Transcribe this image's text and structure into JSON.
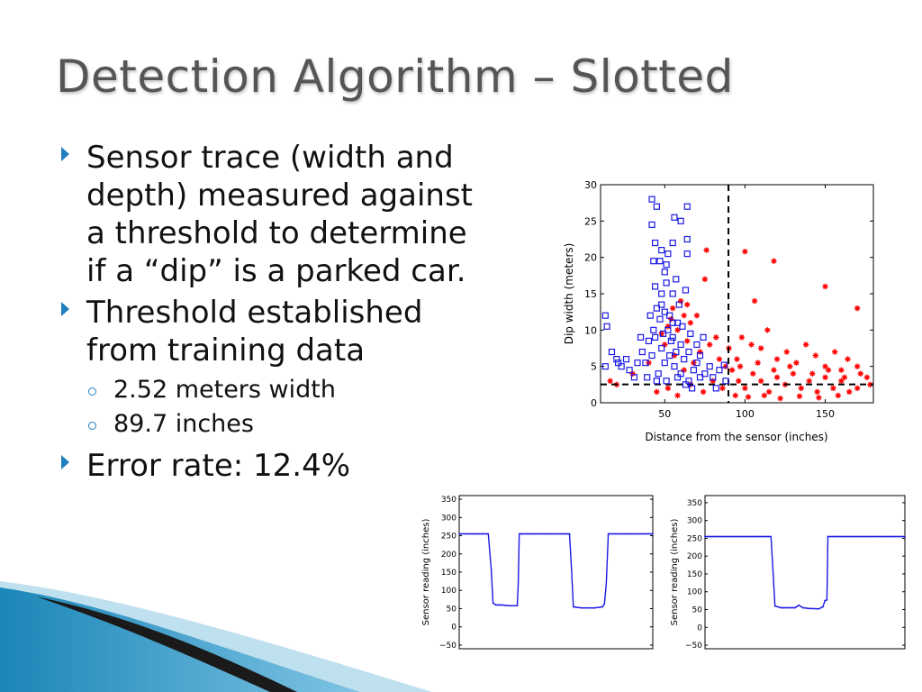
{
  "title": "Detection Algorithm – Slotted",
  "bullets": [
    {
      "text": "Sensor trace (width and depth) measured against a threshold to determine if a “dip” is a parked car."
    },
    {
      "text": "Threshold established from training data",
      "sub": [
        "2.52 meters width",
        "89.7 inches"
      ]
    },
    {
      "text": "Error rate: 12.4%"
    }
  ],
  "colors": {
    "accent": "#1f7fbf",
    "blue_series": "#1a1ae6",
    "red_series": "#ff0000"
  },
  "chart_data": [
    {
      "type": "scatter",
      "xlabel": "Distance from the sensor (inches)",
      "ylabel": "Dip width (meters)",
      "xlim": [
        10,
        180
      ],
      "ylim": [
        0,
        30
      ],
      "x_ticks": [
        50,
        100,
        150
      ],
      "y_ticks": [
        0,
        5,
        10,
        15,
        20,
        25,
        30
      ],
      "thresholds": {
        "x": 89.7,
        "y": 2.52
      },
      "series": [
        {
          "marker": "square",
          "color": "#1a1ae6",
          "points": [
            [
              42,
              28
            ],
            [
              45,
              27
            ],
            [
              64,
              27
            ],
            [
              56,
              25.5
            ],
            [
              60,
              25
            ],
            [
              42,
              24.5
            ],
            [
              55,
              22
            ],
            [
              64,
              22.5
            ],
            [
              44,
              22
            ],
            [
              48,
              21
            ],
            [
              47,
              19.5
            ],
            [
              52,
              20.5
            ],
            [
              43,
              19.5
            ],
            [
              51,
              19
            ],
            [
              64,
              20.5
            ],
            [
              50,
              18
            ],
            [
              51,
              16.5
            ],
            [
              57,
              17
            ],
            [
              44,
              16
            ],
            [
              55,
              15
            ],
            [
              48,
              15
            ],
            [
              63,
              15.5
            ],
            [
              13,
              12
            ],
            [
              14,
              10.5
            ],
            [
              17,
              7
            ],
            [
              20,
              6
            ],
            [
              21,
              5.5
            ],
            [
              13,
              5
            ],
            [
              23,
              5
            ],
            [
              26,
              6
            ],
            [
              28,
              4.5
            ],
            [
              31,
              3.5
            ],
            [
              38,
              5.5
            ],
            [
              36,
              7
            ],
            [
              40,
              8.5
            ],
            [
              43,
              10
            ],
            [
              41,
              12
            ],
            [
              45,
              13
            ],
            [
              47,
              11.5
            ],
            [
              50,
              12.5
            ],
            [
              52,
              10
            ],
            [
              55,
              9
            ],
            [
              58,
              11
            ],
            [
              60,
              8
            ],
            [
              48,
              7.5
            ],
            [
              53,
              6.5
            ],
            [
              56,
              5
            ],
            [
              62,
              6
            ],
            [
              65,
              7
            ],
            [
              68,
              4.5
            ],
            [
              70,
              5.5
            ],
            [
              72,
              6.5
            ],
            [
              75,
              4
            ],
            [
              78,
              5
            ],
            [
              80,
              3.5
            ],
            [
              84,
              4.5
            ],
            [
              87,
              5.2
            ],
            [
              46,
              4
            ],
            [
              51,
              3
            ],
            [
              58,
              3.5
            ],
            [
              63,
              2.5
            ],
            [
              67,
              2
            ],
            [
              44,
              9
            ],
            [
              49,
              9.5
            ],
            [
              54,
              8.5
            ],
            [
              59,
              13.5
            ],
            [
              61,
              10.5
            ],
            [
              66,
              9.5
            ],
            [
              42,
              6.5
            ],
            [
              39,
              3.5
            ],
            [
              48,
              13.5
            ],
            [
              53,
              12
            ],
            [
              57,
              7
            ],
            [
              70,
              8
            ],
            [
              74,
              9
            ],
            [
              35,
              9
            ],
            [
              33,
              5.5
            ],
            [
              45,
              3
            ],
            [
              60,
              4
            ],
            [
              65,
              3
            ],
            [
              72,
              3.5
            ],
            [
              82,
              2
            ],
            [
              88,
              3
            ],
            [
              50,
              5.5
            ],
            [
              55,
              11
            ]
          ]
        },
        {
          "marker": "star",
          "color": "#ff0000",
          "points": [
            [
              76,
              21
            ],
            [
              100,
              20.8
            ],
            [
              118,
              19.5
            ],
            [
              75,
              17
            ],
            [
              150,
              16
            ],
            [
              106,
              14
            ],
            [
              170,
              13
            ],
            [
              55,
              13
            ],
            [
              62,
              12
            ],
            [
              70,
              12
            ],
            [
              52,
              10.5
            ],
            [
              58,
              10
            ],
            [
              66,
              11
            ],
            [
              60,
              14
            ],
            [
              50,
              8
            ],
            [
              64,
              8.5
            ],
            [
              72,
              7
            ],
            [
              78,
              8
            ],
            [
              84,
              6
            ],
            [
              90,
              7.5
            ],
            [
              95,
              6
            ],
            [
              98,
              9
            ],
            [
              104,
              8
            ],
            [
              110,
              7.5
            ],
            [
              114,
              10
            ],
            [
              120,
              6
            ],
            [
              126,
              7
            ],
            [
              132,
              5.5
            ],
            [
              138,
              8
            ],
            [
              144,
              6.5
            ],
            [
              150,
              5
            ],
            [
              156,
              7
            ],
            [
              160,
              4.5
            ],
            [
              164,
              6
            ],
            [
              170,
              5
            ],
            [
              176,
              3.5
            ],
            [
              178,
              2.5
            ],
            [
              96,
              3
            ],
            [
              100,
              2
            ],
            [
              105,
              4
            ],
            [
              110,
              3
            ],
            [
              115,
              1.5
            ],
            [
              120,
              3.5
            ],
            [
              125,
              2.5
            ],
            [
              130,
              4
            ],
            [
              135,
              2
            ],
            [
              140,
              3
            ],
            [
              145,
              1.5
            ],
            [
              150,
              3.5
            ],
            [
              155,
              2
            ],
            [
              160,
              3
            ],
            [
              165,
              1.5
            ],
            [
              170,
              2
            ],
            [
              94,
              1
            ],
            [
              102,
              0.8
            ],
            [
              112,
              1
            ],
            [
              122,
              0.6
            ],
            [
              134,
              0.9
            ],
            [
              146,
              0.7
            ],
            [
              158,
              1
            ],
            [
              92,
              4.5
            ],
            [
              97,
              5
            ],
            [
              108,
              5.5
            ],
            [
              118,
              4.5
            ],
            [
              128,
              5
            ],
            [
              142,
              4
            ],
            [
              152,
              4.5
            ],
            [
              162,
              3.5
            ],
            [
              172,
              4
            ],
            [
              16,
              3
            ],
            [
              20,
              2.5
            ],
            [
              30,
              4
            ],
            [
              40,
              5.5
            ],
            [
              45,
              1.5
            ],
            [
              52,
              2
            ],
            [
              58,
              1
            ],
            [
              66,
              2.5
            ],
            [
              74,
              1.5
            ],
            [
              80,
              3
            ],
            [
              86,
              2
            ],
            [
              88,
              5
            ],
            [
              82,
              9
            ],
            [
              68,
              5.5
            ],
            [
              62,
              4.5
            ],
            [
              56,
              6.5
            ],
            [
              48,
              9.5
            ],
            [
              54,
              11.5
            ],
            [
              64,
              13.5
            ]
          ]
        }
      ]
    },
    {
      "type": "line",
      "ylabel": "Sensor reading (inches)",
      "ylim": [
        -60,
        360
      ],
      "xlim": [
        0,
        100
      ],
      "y_ticks": [
        -50,
        0,
        50,
        100,
        150,
        200,
        250,
        300,
        350
      ],
      "series": [
        {
          "color": "#1a1ae6",
          "points": [
            [
              0,
              255
            ],
            [
              15,
              255
            ],
            [
              16.5,
              160
            ],
            [
              17.5,
              65
            ],
            [
              19,
              60
            ],
            [
              22,
              60
            ],
            [
              26,
              58
            ],
            [
              30,
              58
            ],
            [
              30.5,
              120
            ],
            [
              31,
              255
            ],
            [
              57,
              255
            ],
            [
              58,
              160
            ],
            [
              59,
              55
            ],
            [
              63,
              52
            ],
            [
              70,
              52
            ],
            [
              74,
              55
            ],
            [
              75,
              63
            ],
            [
              76,
              120
            ],
            [
              77,
              255
            ],
            [
              100,
              255
            ]
          ]
        }
      ]
    },
    {
      "type": "line",
      "ylabel": "Sensor reading (inches)",
      "ylim": [
        -60,
        370
      ],
      "xlim": [
        0,
        100
      ],
      "y_ticks": [
        -50,
        0,
        50,
        100,
        150,
        200,
        250,
        300,
        350
      ],
      "series": [
        {
          "color": "#1a1ae6",
          "points": [
            [
              0,
              255
            ],
            [
              33,
              255
            ],
            [
              34,
              160
            ],
            [
              35,
              60
            ],
            [
              38,
              55
            ],
            [
              45,
              55
            ],
            [
              47,
              62
            ],
            [
              49,
              55
            ],
            [
              52,
              53
            ],
            [
              57,
              52
            ],
            [
              59,
              58
            ],
            [
              60,
              75
            ],
            [
              61,
              77
            ],
            [
              61.5,
              255
            ],
            [
              100,
              255
            ]
          ]
        }
      ]
    }
  ]
}
